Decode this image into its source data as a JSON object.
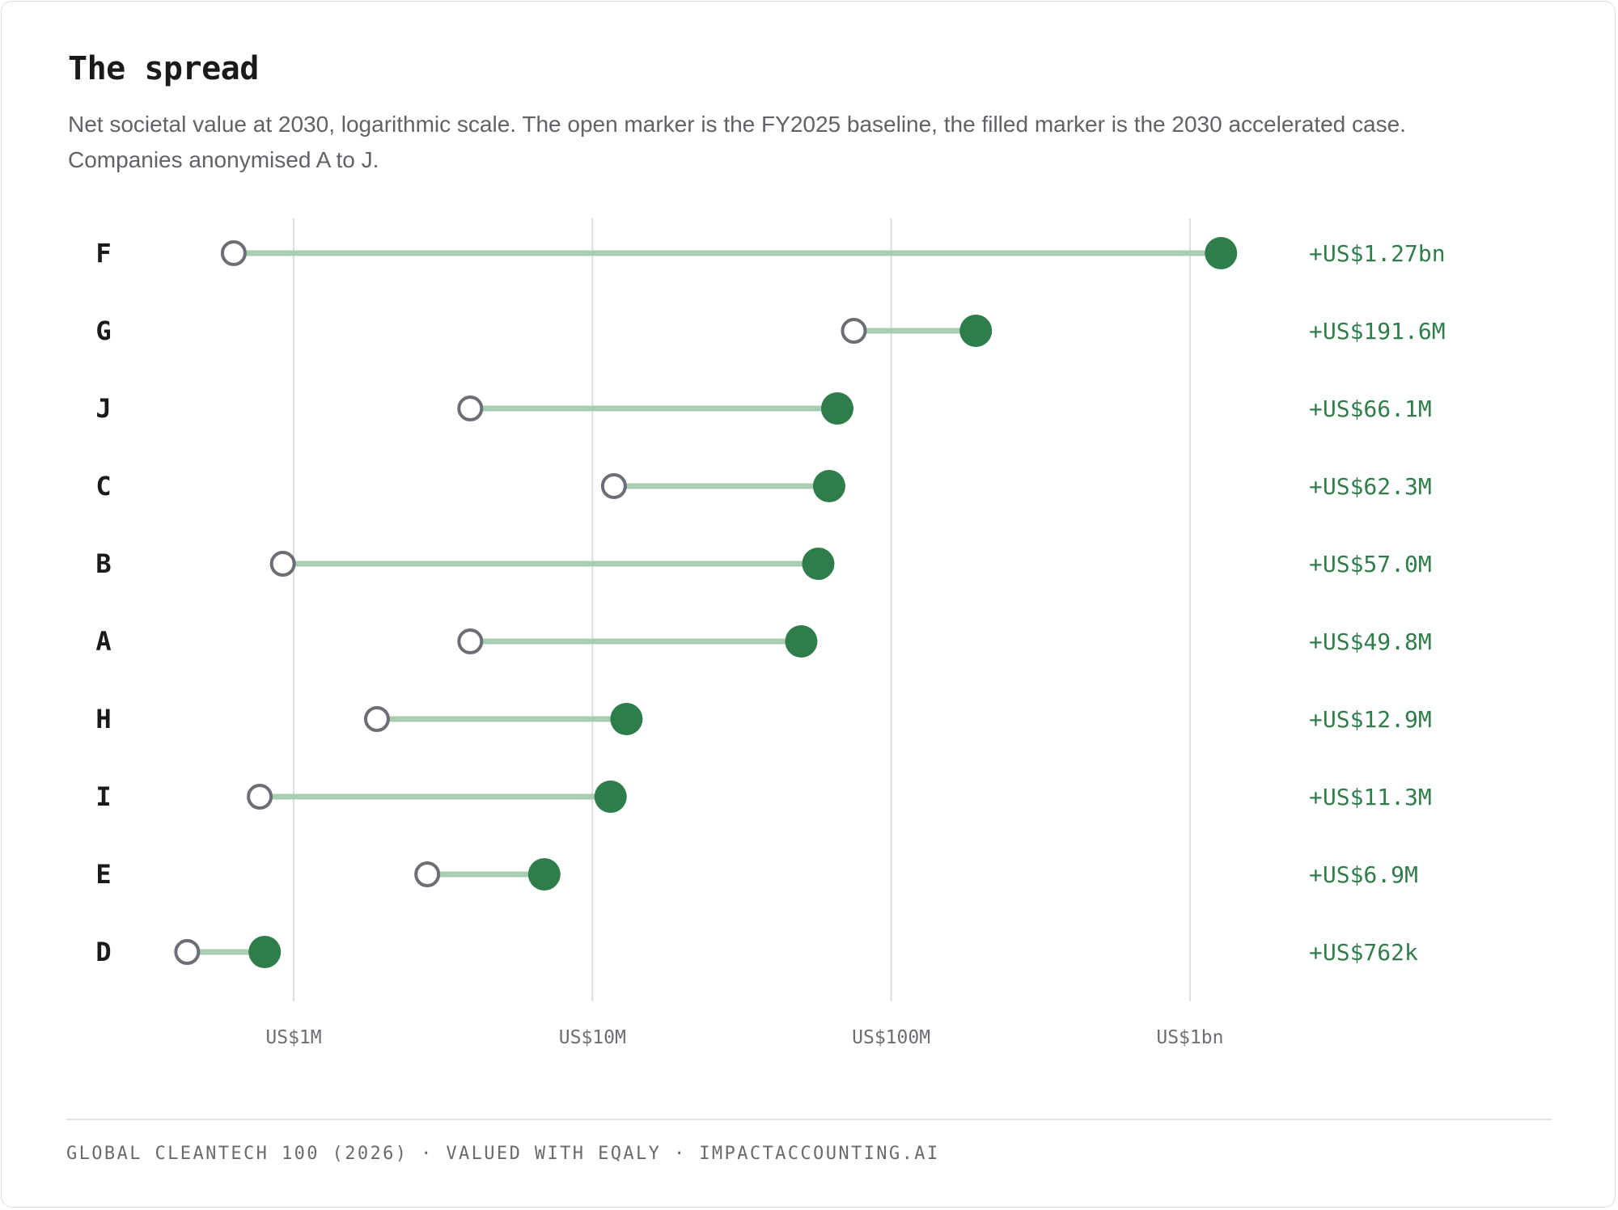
{
  "header": {
    "title": "The spread",
    "subtitle": "Net societal value at 2030, logarithmic scale. The open marker is the FY2025 baseline, the filled marker is the 2030 accelerated case. Companies anonymised A to J."
  },
  "footer": {
    "text": "GLOBAL CLEANTECH 100 (2026) · VALUED WITH EQALY · IMPACTACCOUNTING.AI"
  },
  "colors": {
    "accent": "#2e7d4a",
    "connector": "#a8ceb2",
    "baseline_marker": "#6b6f75",
    "grid": "#dddddd",
    "label_text": "#1a1a1a",
    "tick_text": "#6b6f75"
  },
  "chart_data": {
    "type": "dumbbell",
    "x_scale": "log",
    "x_unit": "US$",
    "xlim": [
      380000,
      1500000000
    ],
    "x_ticks": [
      {
        "value": 1000000,
        "label": "US$1M"
      },
      {
        "value": 10000000,
        "label": "US$10M"
      },
      {
        "value": 100000000,
        "label": "US$100M"
      },
      {
        "value": 1000000000,
        "label": "US$1bn"
      }
    ],
    "grid": true,
    "series": [
      {
        "marker": "open"
      },
      {
        "marker": "filled"
      }
    ],
    "rows": [
      {
        "label": "F",
        "baseline": 630000,
        "accelerated": 1270000000,
        "value_label": "+US$1.27bn"
      },
      {
        "label": "G",
        "baseline": 75000000,
        "accelerated": 192000000,
        "value_label": "+US$191.6M"
      },
      {
        "label": "J",
        "baseline": 3900000,
        "accelerated": 66000000,
        "value_label": "+US$66.1M"
      },
      {
        "label": "C",
        "baseline": 11800000,
        "accelerated": 62000000,
        "value_label": "+US$62.3M"
      },
      {
        "label": "B",
        "baseline": 920000,
        "accelerated": 57000000,
        "value_label": "+US$57.0M"
      },
      {
        "label": "A",
        "baseline": 3900000,
        "accelerated": 50000000,
        "value_label": "+US$49.8M"
      },
      {
        "label": "H",
        "baseline": 1900000,
        "accelerated": 13000000,
        "value_label": "+US$12.9M"
      },
      {
        "label": "I",
        "baseline": 770000,
        "accelerated": 11500000,
        "value_label": "+US$11.3M"
      },
      {
        "label": "E",
        "baseline": 2800000,
        "accelerated": 6900000,
        "value_label": "+US$6.9M"
      },
      {
        "label": "D",
        "baseline": 440000,
        "accelerated": 800000,
        "value_label": "+US$762k"
      }
    ]
  }
}
